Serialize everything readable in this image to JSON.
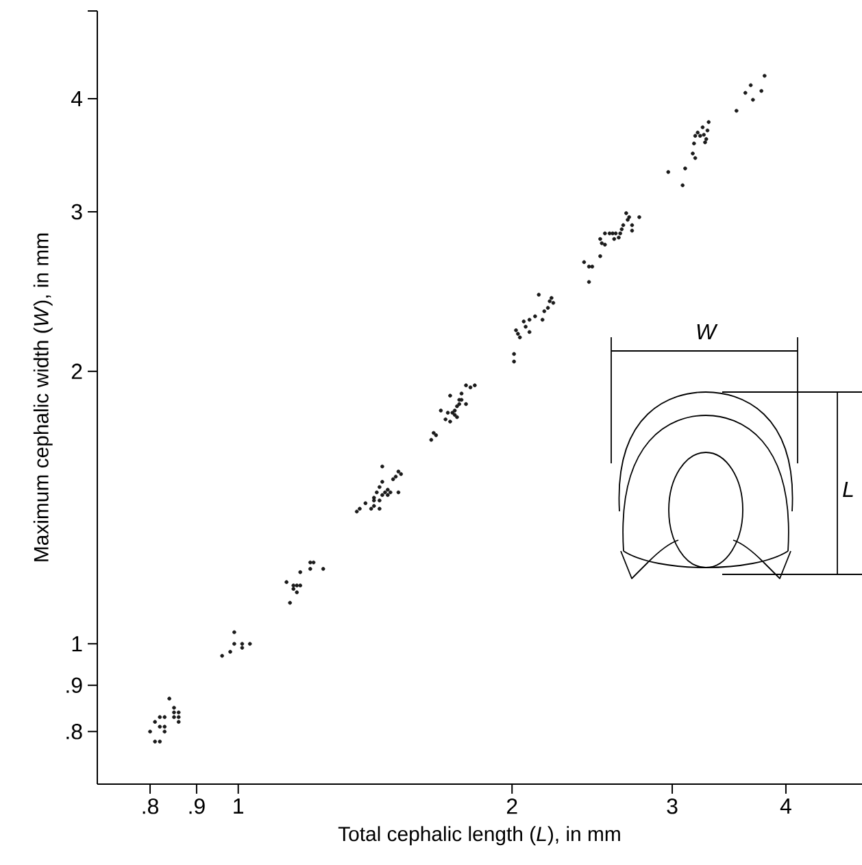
{
  "chart_data": {
    "type": "scatter",
    "xlabel": "Total cephalic length (*L*), in mm",
    "ylabel": "Maximum cephalic width (*W*), in mm",
    "log": "xy",
    "color": "#1a1a1a",
    "xlim": [
      0.7,
      4.85
    ],
    "ylim": [
      0.7,
      5
    ],
    "xticks": [
      {
        "value": 0.8,
        "label": ".8"
      },
      {
        "value": 0.9,
        "label": ".9"
      },
      1,
      2,
      3,
      4
    ],
    "yticks": [
      {
        "value": 0.8,
        "label": ".8"
      },
      {
        "value": 0.9,
        "label": ".9"
      },
      1,
      2,
      3,
      4,
      {
        "value": 5,
        "label": null
      }
    ],
    "annotations": [
      "W",
      "L"
    ],
    "x": [
      0.8,
      0.81,
      0.82,
      0.81,
      0.82,
      0.82,
      0.83,
      0.83,
      0.83,
      0.84,
      0.85,
      0.85,
      0.85,
      0.86,
      0.86,
      0.86,
      0.96,
      0.98,
      0.99,
      0.99,
      1.01,
      1.01,
      1.03,
      1.13,
      1.14,
      1.15,
      1.15,
      1.16,
      1.17,
      1.17,
      1.16,
      1.2,
      1.2,
      1.21,
      1.24,
      1.35,
      1.36,
      1.38,
      1.4,
      1.41,
      1.41,
      1.41,
      1.42,
      1.43,
      1.43,
      1.43,
      1.44,
      1.44,
      1.45,
      1.46,
      1.46,
      1.47,
      1.48,
      1.49,
      1.5,
      1.51,
      1.5,
      1.44,
      1.63,
      1.64,
      1.65,
      1.67,
      1.69,
      1.7,
      1.71,
      1.71,
      1.72,
      1.73,
      1.73,
      1.74,
      1.74,
      1.75,
      1.75,
      1.76,
      1.76,
      1.78,
      1.78,
      1.8,
      1.82,
      2.01,
      2.01,
      2.02,
      2.03,
      2.04,
      2.06,
      2.07,
      2.09,
      2.09,
      2.12,
      2.14,
      2.16,
      2.17,
      2.19,
      2.2,
      2.21,
      2.22,
      2.4,
      2.43,
      2.45,
      2.43,
      2.5,
      2.5,
      2.51,
      2.53,
      2.53,
      2.56,
      2.58,
      2.59,
      2.6,
      2.62,
      2.63,
      2.64,
      2.65,
      2.67,
      2.68,
      2.69,
      2.71,
      2.71,
      2.76,
      2.97,
      3.08,
      3.1,
      3.16,
      3.18,
      3.17,
      3.18,
      3.2,
      3.22,
      3.24,
      3.25,
      3.26,
      3.27,
      3.28,
      3.29,
      3.53,
      3.61,
      3.66,
      3.68,
      3.76,
      3.79
    ],
    "values": [
      0.8,
      0.78,
      0.78,
      0.82,
      0.81,
      0.83,
      0.81,
      0.8,
      0.83,
      0.87,
      0.85,
      0.84,
      0.83,
      0.84,
      0.83,
      0.82,
      0.97,
      0.98,
      1.0,
      1.03,
      1.0,
      0.99,
      1.0,
      1.17,
      1.11,
      1.15,
      1.16,
      1.14,
      1.2,
      1.16,
      1.16,
      1.23,
      1.21,
      1.23,
      1.21,
      1.4,
      1.41,
      1.43,
      1.41,
      1.44,
      1.42,
      1.45,
      1.47,
      1.49,
      1.41,
      1.44,
      1.46,
      1.51,
      1.47,
      1.48,
      1.46,
      1.47,
      1.52,
      1.53,
      1.55,
      1.54,
      1.47,
      1.57,
      1.68,
      1.71,
      1.7,
      1.81,
      1.77,
      1.8,
      1.76,
      1.88,
      1.8,
      1.79,
      1.81,
      1.83,
      1.78,
      1.84,
      1.86,
      1.89,
      1.86,
      1.84,
      1.93,
      1.92,
      1.93,
      2.09,
      2.05,
      2.22,
      2.2,
      2.18,
      2.27,
      2.24,
      2.21,
      2.28,
      2.3,
      2.43,
      2.28,
      2.33,
      2.35,
      2.39,
      2.41,
      2.38,
      2.64,
      2.61,
      2.61,
      2.51,
      2.68,
      2.8,
      2.77,
      2.76,
      2.84,
      2.84,
      2.84,
      2.8,
      2.84,
      2.81,
      2.84,
      2.87,
      2.9,
      2.99,
      2.94,
      2.96,
      2.86,
      2.9,
      2.96,
      3.32,
      3.21,
      3.35,
      3.48,
      3.44,
      3.57,
      3.64,
      3.67,
      3.64,
      3.72,
      3.65,
      3.58,
      3.61,
      3.69,
      3.77,
      3.88,
      4.06,
      4.14,
      3.99,
      4.08,
      4.24
    ]
  }
}
